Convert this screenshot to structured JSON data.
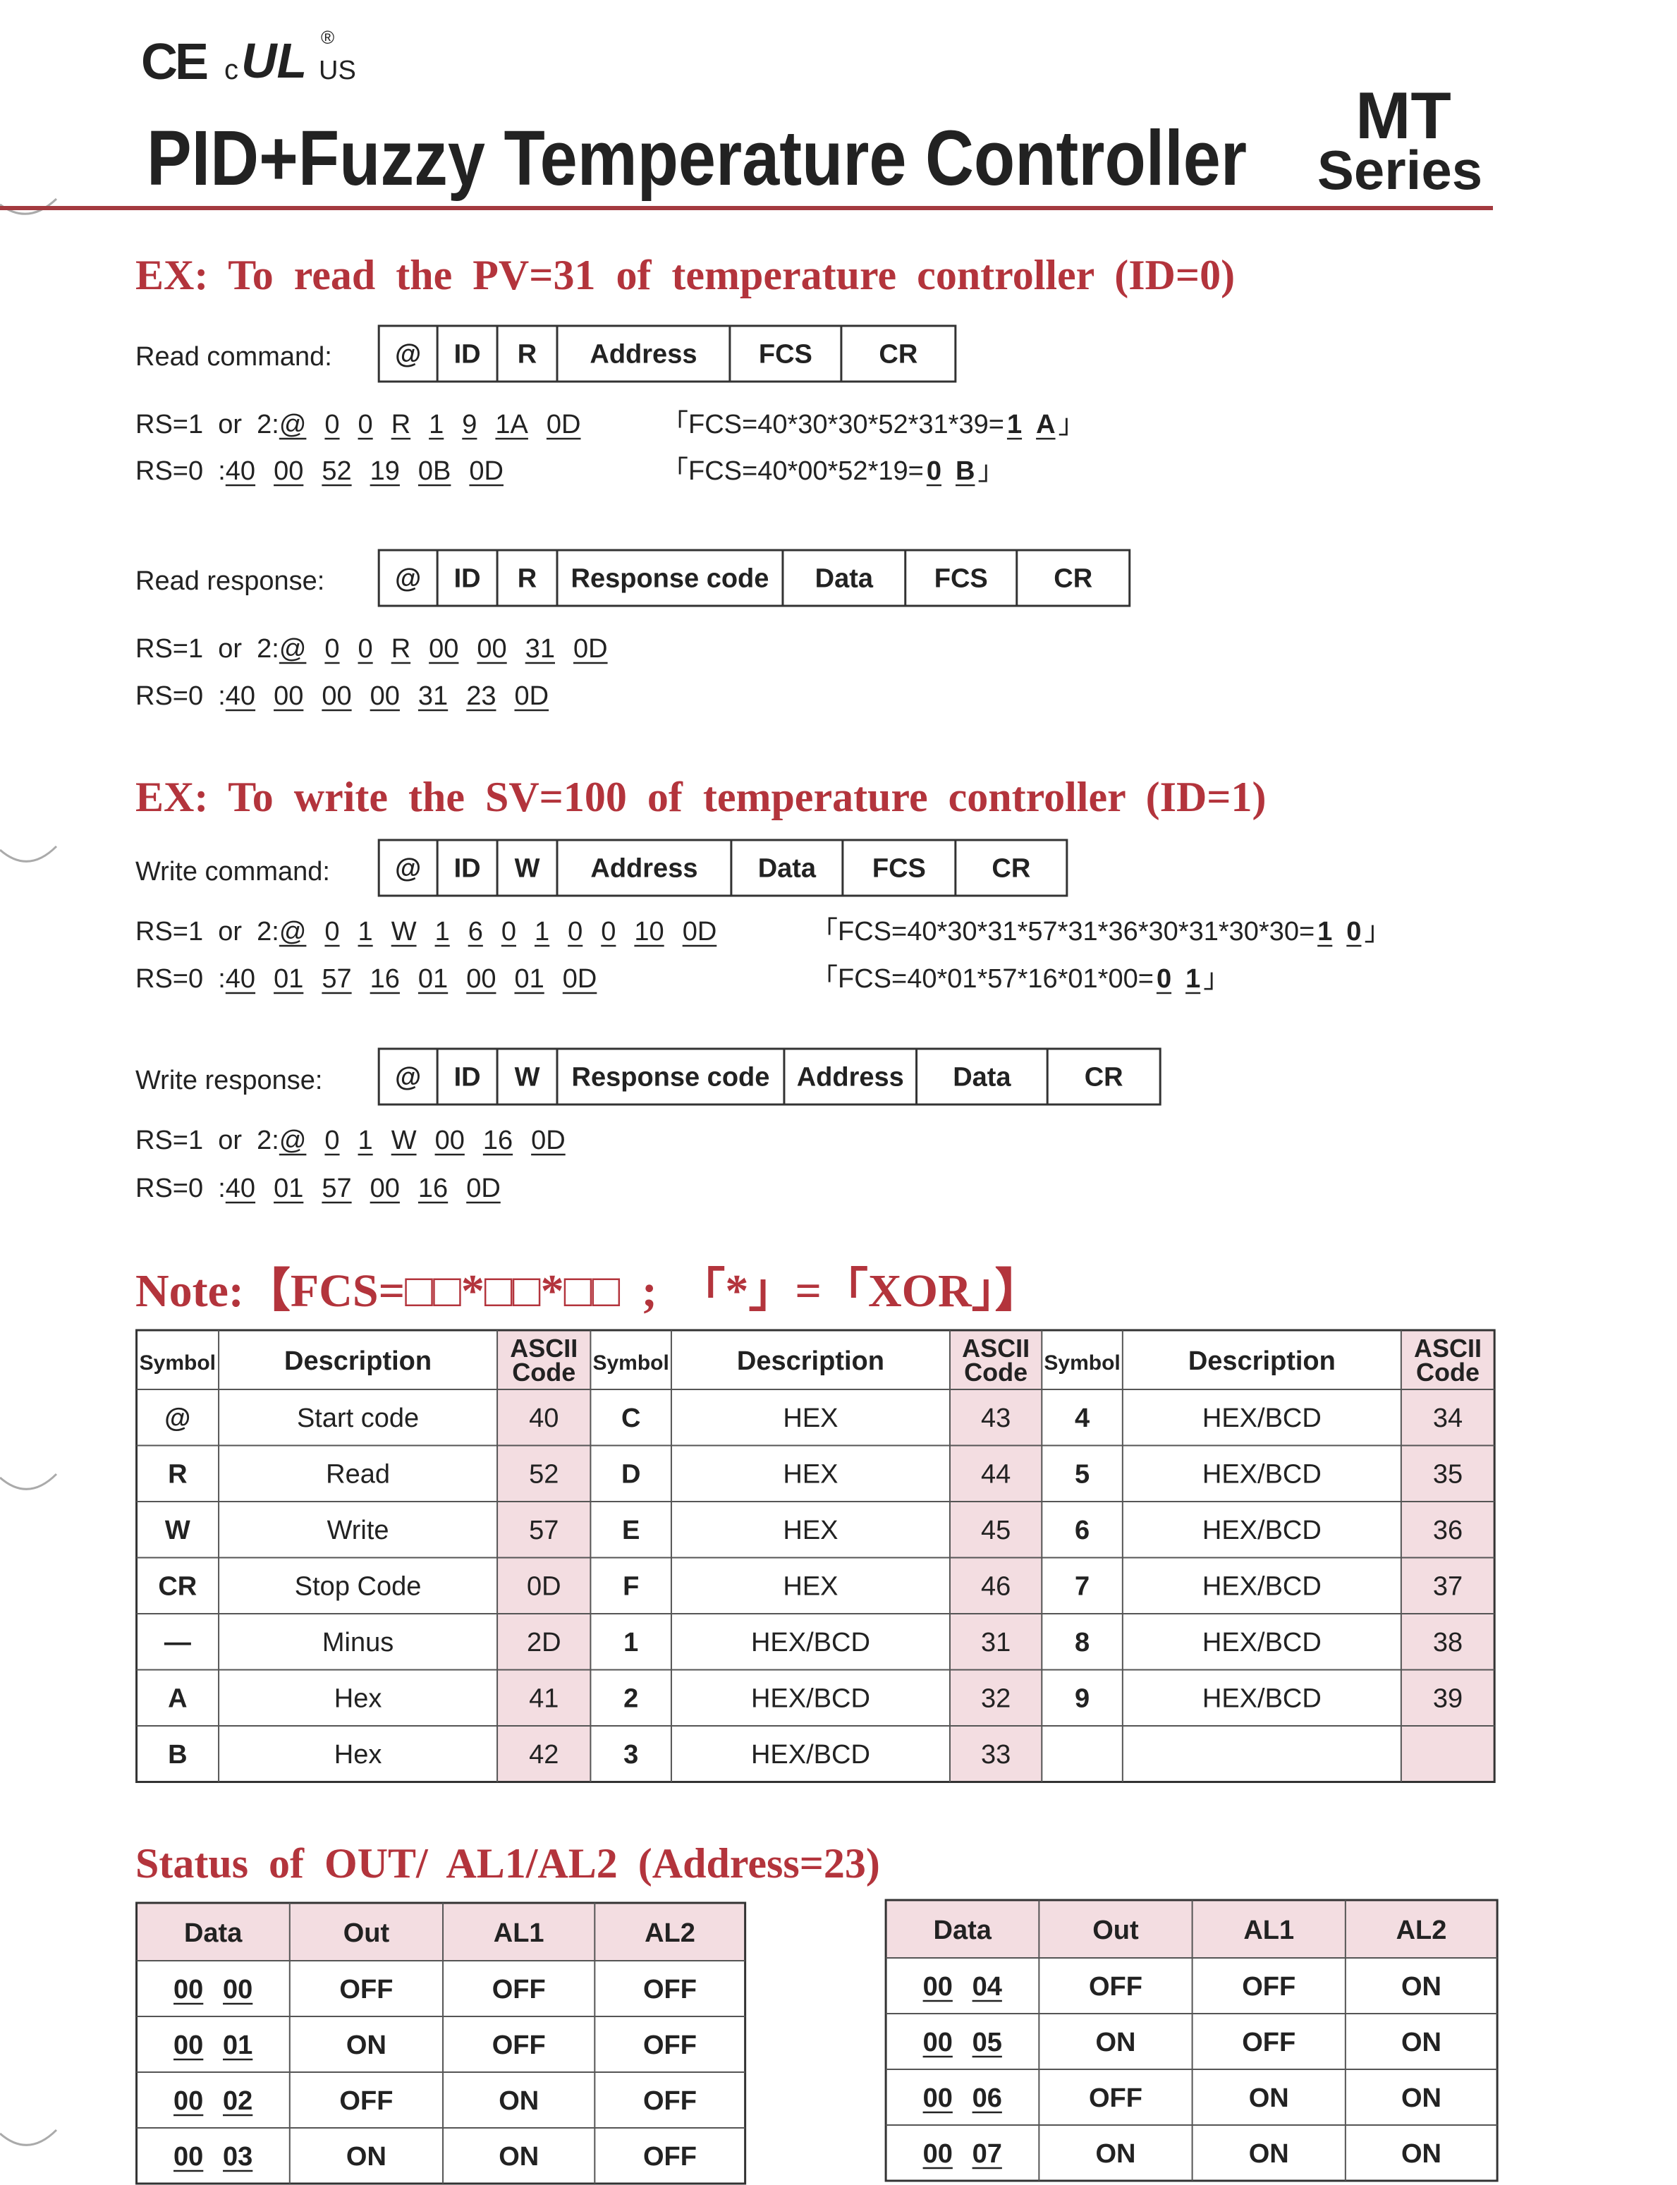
{
  "header": {
    "logo": {
      "ce": "CE",
      "c": "c",
      "ul": "UL",
      "registered": "®",
      "us": "US"
    },
    "title": "PID+Fuzzy Temperature Controller",
    "series_top": "MT",
    "series_bottom": "Series"
  },
  "read_example": {
    "heading": "EX: To read the PV=31 of temperature controller (ID=0)",
    "command": {
      "label": "Read command:",
      "frame": [
        "@",
        "ID",
        "R",
        "Address",
        "FCS",
        "CR"
      ],
      "lines": [
        {
          "prefix": "RS=1  or  2:",
          "tokens": [
            "@",
            "0",
            "0",
            "R",
            "1",
            "9",
            "1A",
            "0D"
          ],
          "fcs": "「FCS=40*30*30*52*31*39=",
          "fcs_result": [
            "1",
            "A"
          ],
          "fcs_close": "」"
        },
        {
          "prefix": "RS=0  :",
          "tokens": [
            "40",
            "00",
            "52",
            "19",
            "0B",
            "0D"
          ],
          "fcs": "「FCS=40*00*52*19=",
          "fcs_result": [
            "0",
            "B"
          ],
          "fcs_close": "」"
        }
      ]
    },
    "response": {
      "label": "Read response:",
      "frame": [
        "@",
        "ID",
        "R",
        "Response code",
        "Data",
        "FCS",
        "CR"
      ],
      "lines": [
        {
          "prefix": "RS=1  or  2:",
          "tokens": [
            "@",
            "0",
            "0",
            "R",
            "00",
            "00",
            "31",
            "0D"
          ]
        },
        {
          "prefix": "RS=0  :",
          "tokens": [
            "40",
            "00",
            "00",
            "00",
            "31",
            "23",
            "0D"
          ]
        }
      ]
    }
  },
  "write_example": {
    "heading": "EX: To write the SV=100 of temperature controller (ID=1)",
    "command": {
      "label": "Write command:",
      "frame": [
        "@",
        "ID",
        "W",
        "Address",
        "Data",
        "FCS",
        "CR"
      ],
      "lines": [
        {
          "prefix": "RS=1  or  2:",
          "tokens": [
            "@",
            "0",
            "1",
            "W",
            "1",
            "6",
            "0",
            "1",
            "0",
            "0",
            "10",
            "0D"
          ],
          "fcs": "「FCS=40*30*31*57*31*36*30*31*30*30=",
          "fcs_result": [
            "1",
            "0"
          ],
          "fcs_close": "」"
        },
        {
          "prefix": "RS=0  :",
          "tokens": [
            "40",
            "01",
            "57",
            "16",
            "01",
            "00",
            "01",
            "0D"
          ],
          "fcs": "「FCS=40*01*57*16*01*00=",
          "fcs_result": [
            "0",
            "1"
          ],
          "fcs_close": "」"
        }
      ]
    },
    "response": {
      "label": "Write response:",
      "frame": [
        "@",
        "ID",
        "W",
        "Response code",
        "Address",
        "Data",
        "CR"
      ],
      "lines": [
        {
          "prefix": "RS=1  or  2:",
          "tokens": [
            "@",
            "0",
            "1",
            "W",
            "00",
            "16",
            "0D"
          ]
        },
        {
          "prefix": "RS=0  :",
          "tokens": [
            "40",
            "01",
            "57",
            "00",
            "16",
            "0D"
          ]
        }
      ]
    }
  },
  "note": {
    "heading": "Note:【FCS=□□*□□*□□ ; 「*」=「XOR」】",
    "table": {
      "header": [
        "Symbol",
        "Description",
        "ASCII Code",
        "Symbol",
        "Description",
        "ASCII Code",
        "Symbol",
        "Description",
        "ASCII Code"
      ],
      "rows": [
        [
          "@",
          "Start code",
          "40",
          "C",
          "HEX",
          "43",
          "4",
          "HEX/BCD",
          "34"
        ],
        [
          "R",
          "Read",
          "52",
          "D",
          "HEX",
          "44",
          "5",
          "HEX/BCD",
          "35"
        ],
        [
          "W",
          "Write",
          "57",
          "E",
          "HEX",
          "45",
          "6",
          "HEX/BCD",
          "36"
        ],
        [
          "CR",
          "Stop Code",
          "0D",
          "F",
          "HEX",
          "46",
          "7",
          "HEX/BCD",
          "37"
        ],
        [
          "—",
          "Minus",
          "2D",
          "1",
          "HEX/BCD",
          "31",
          "8",
          "HEX/BCD",
          "38"
        ],
        [
          "A",
          "Hex",
          "41",
          "2",
          "HEX/BCD",
          "32",
          "9",
          "HEX/BCD",
          "39"
        ],
        [
          "B",
          "Hex",
          "42",
          "3",
          "HEX/BCD",
          "33",
          null,
          null,
          null
        ]
      ]
    }
  },
  "status": {
    "heading": "Status of OUT/ AL1/AL2 (Address=23)",
    "tables": [
      {
        "header": [
          "Data",
          "Out",
          "AL1",
          "AL2"
        ],
        "rows": [
          [
            [
              "00",
              "00"
            ],
            "OFF",
            "OFF",
            "OFF"
          ],
          [
            [
              "00",
              "01"
            ],
            "ON",
            "OFF",
            "OFF"
          ],
          [
            [
              "00",
              "02"
            ],
            "OFF",
            "ON",
            "OFF"
          ],
          [
            [
              "00",
              "03"
            ],
            "ON",
            "ON",
            "OFF"
          ]
        ]
      },
      {
        "header": [
          "Data",
          "Out",
          "AL1",
          "AL2"
        ],
        "rows": [
          [
            [
              "00",
              "04"
            ],
            "OFF",
            "OFF",
            "ON"
          ],
          [
            [
              "00",
              "05"
            ],
            "ON",
            "OFF",
            "ON"
          ],
          [
            [
              "00",
              "06"
            ],
            "OFF",
            "ON",
            "ON"
          ],
          [
            [
              "00",
              "07"
            ],
            "ON",
            "ON",
            "ON"
          ]
        ]
      }
    ]
  }
}
